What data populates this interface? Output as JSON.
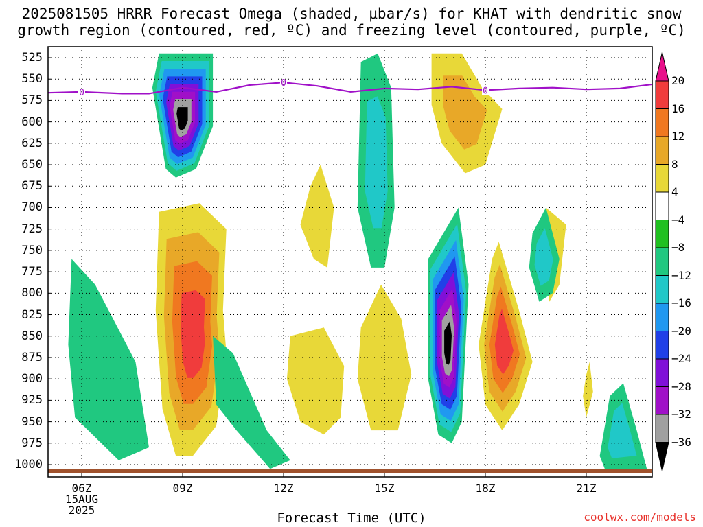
{
  "title_line1": "2025081505 HRRR Forecast Omega (shaded, μbar/s) for KHAT with dendritic snow",
  "title_line2": "growth region (contoured, red, ºC) and freezing level (contoured, purple, ºC)",
  "xaxis_title": "Forecast Time (UTC)",
  "credit": "coolwx.com/models",
  "colors": {
    "freezing_level": "#a010c8",
    "ground": "#a0522d"
  },
  "chart_data": {
    "type": "heatmap",
    "y_ticks": [
      "525",
      "550",
      "575",
      "600",
      "625",
      "650",
      "675",
      "700",
      "725",
      "750",
      "775",
      "800",
      "825",
      "850",
      "875",
      "900",
      "925",
      "950",
      "975",
      "1000"
    ],
    "x_ticks": [
      {
        "label": "06Z",
        "sub": [
          "15AUG",
          "2025"
        ]
      },
      {
        "label": "09Z",
        "sub": []
      },
      {
        "label": "12Z",
        "sub": []
      },
      {
        "label": "15Z",
        "sub": []
      },
      {
        "label": "18Z",
        "sub": []
      },
      {
        "label": "21Z",
        "sub": []
      }
    ],
    "colorbar": {
      "labels": [
        "20",
        "16",
        "12",
        "8",
        "4",
        "−4",
        "−8",
        "−12",
        "−16",
        "−20",
        "−24",
        "−28",
        "−32",
        "−36"
      ],
      "colors": [
        "#e8108a",
        "#f03c3c",
        "#f07820",
        "#e8a828",
        "#e8d838",
        "#ffffff",
        "#20c020",
        "#20c880",
        "#20c8c8",
        "#2098f0",
        "#2040e8",
        "#8010d8",
        "#a010c8",
        "#a0a0a0",
        "#000000"
      ]
    },
    "freezing_level_label": "0",
    "freezing_level_hpa": [
      {
        "t": 5.0,
        "p": 566
      },
      {
        "t": 6.0,
        "p": 565
      },
      {
        "t": 7.2,
        "p": 567
      },
      {
        "t": 8.0,
        "p": 567
      },
      {
        "t": 9.0,
        "p": 560
      },
      {
        "t": 10.0,
        "p": 565
      },
      {
        "t": 11.0,
        "p": 557
      },
      {
        "t": 12.0,
        "p": 554
      },
      {
        "t": 13.0,
        "p": 558
      },
      {
        "t": 14.0,
        "p": 565
      },
      {
        "t": 15.0,
        "p": 561
      },
      {
        "t": 16.0,
        "p": 562
      },
      {
        "t": 17.0,
        "p": 559
      },
      {
        "t": 18.0,
        "p": 563
      },
      {
        "t": 19.0,
        "p": 561
      },
      {
        "t": 20.0,
        "p": 560
      },
      {
        "t": 21.0,
        "p": 562
      },
      {
        "t": 22.0,
        "p": 561
      },
      {
        "t": 23.0,
        "p": 556
      }
    ],
    "freezing_level_label_times": [
      6.0,
      12.0,
      18.0
    ],
    "regions": [
      {
        "name": "ascent-09z-upper",
        "level": "-36",
        "points": [
          [
            8.3,
            520
          ],
          [
            9.9,
            520
          ],
          [
            9.9,
            605
          ],
          [
            9.4,
            655
          ],
          [
            8.8,
            665
          ],
          [
            8.5,
            655
          ],
          [
            8.1,
            560
          ]
        ]
      },
      {
        "name": "ascent-17z-lower",
        "level": "-36",
        "points": [
          [
            16.3,
            760
          ],
          [
            17.2,
            700
          ],
          [
            17.5,
            790
          ],
          [
            17.3,
            950
          ],
          [
            17.0,
            975
          ],
          [
            16.6,
            965
          ],
          [
            16.3,
            900
          ]
        ]
      },
      {
        "name": "descent-09z-lower",
        "level": "16",
        "points": [
          [
            8.3,
            705
          ],
          [
            9.5,
            695
          ],
          [
            10.3,
            725
          ],
          [
            10.2,
            820
          ],
          [
            10.3,
            870
          ],
          [
            10.0,
            955
          ],
          [
            9.3,
            990
          ],
          [
            8.8,
            990
          ],
          [
            8.4,
            935
          ],
          [
            8.2,
            820
          ]
        ]
      },
      {
        "name": "descent-1830z",
        "level": "16",
        "points": [
          [
            18.2,
            760
          ],
          [
            18.4,
            740
          ],
          [
            19.0,
            820
          ],
          [
            19.4,
            880
          ],
          [
            19.0,
            930
          ],
          [
            18.5,
            960
          ],
          [
            18.0,
            930
          ],
          [
            17.8,
            860
          ]
        ]
      },
      {
        "name": "descent-13z",
        "level": "4",
        "points": [
          [
            12.2,
            850
          ],
          [
            13.2,
            840
          ],
          [
            13.8,
            885
          ],
          [
            13.7,
            945
          ],
          [
            13.2,
            965
          ],
          [
            12.5,
            950
          ],
          [
            12.1,
            900
          ]
        ]
      },
      {
        "name": "descent-15z",
        "level": "4",
        "points": [
          [
            14.3,
            840
          ],
          [
            14.9,
            790
          ],
          [
            15.5,
            830
          ],
          [
            15.8,
            895
          ],
          [
            15.4,
            960
          ],
          [
            14.6,
            960
          ],
          [
            14.2,
            900
          ]
        ]
      },
      {
        "name": "descent-17z-upper",
        "level": "8",
        "points": [
          [
            16.4,
            520
          ],
          [
            17.3,
            520
          ],
          [
            17.9,
            560
          ],
          [
            18.5,
            585
          ],
          [
            18.0,
            650
          ],
          [
            17.4,
            660
          ],
          [
            16.7,
            625
          ],
          [
            16.4,
            580
          ]
        ]
      },
      {
        "name": "descent-1930z",
        "level": "4",
        "points": [
          [
            19.8,
            700
          ],
          [
            20.4,
            720
          ],
          [
            20.2,
            790
          ],
          [
            19.9,
            810
          ],
          [
            19.8,
            760
          ]
        ]
      },
      {
        "name": "descent-13z-mid",
        "level": "4",
        "points": [
          [
            12.8,
            675
          ],
          [
            13.1,
            650
          ],
          [
            13.5,
            700
          ],
          [
            13.3,
            770
          ],
          [
            12.9,
            760
          ],
          [
            12.5,
            720
          ]
        ]
      },
      {
        "name": "ascent-06z",
        "level": "-8",
        "points": [
          [
            5.7,
            760
          ],
          [
            6.4,
            790
          ],
          [
            7.6,
            880
          ],
          [
            8.0,
            980
          ],
          [
            7.1,
            995
          ],
          [
            5.8,
            945
          ],
          [
            5.6,
            860
          ]
        ]
      },
      {
        "name": "ascent-15z-upper",
        "level": "-12",
        "points": [
          [
            14.3,
            530
          ],
          [
            14.8,
            520
          ],
          [
            15.2,
            560
          ],
          [
            15.3,
            700
          ],
          [
            15.0,
            770
          ],
          [
            14.6,
            770
          ],
          [
            14.2,
            700
          ]
        ]
      },
      {
        "name": "ascent-10z-lower",
        "level": "-8",
        "points": [
          [
            9.9,
            850
          ],
          [
            10.5,
            870
          ],
          [
            11.5,
            960
          ],
          [
            12.2,
            995
          ],
          [
            11.6,
            1005
          ],
          [
            10.6,
            960
          ],
          [
            10.0,
            930
          ]
        ]
      },
      {
        "name": "ascent-1930z",
        "level": "-12",
        "points": [
          [
            19.4,
            730
          ],
          [
            19.8,
            700
          ],
          [
            20.2,
            760
          ],
          [
            20.0,
            800
          ],
          [
            19.6,
            810
          ],
          [
            19.3,
            770
          ]
        ]
      },
      {
        "name": "ascent-22z",
        "level": "-12",
        "points": [
          [
            21.4,
            990
          ],
          [
            21.7,
            920
          ],
          [
            22.1,
            905
          ],
          [
            22.5,
            960
          ],
          [
            22.8,
            1005
          ],
          [
            21.6,
            1010
          ]
        ]
      },
      {
        "name": "descent-2030z",
        "level": "4",
        "points": [
          [
            21.0,
            895
          ],
          [
            21.1,
            880
          ],
          [
            21.2,
            915
          ],
          [
            21.0,
            945
          ],
          [
            20.9,
            920
          ]
        ]
      }
    ],
    "ground": {
      "p_min": 1005,
      "p_max": 1010
    }
  }
}
